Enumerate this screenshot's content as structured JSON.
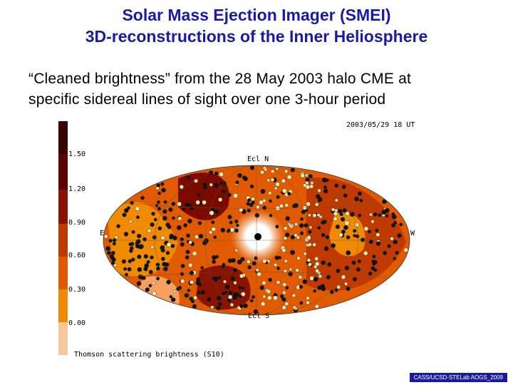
{
  "title": {
    "line1": "Solar Mass Ejection Imager (SMEI)",
    "line2": "3D-reconstructions of the Inner Heliosphere"
  },
  "subtitle": {
    "line1": "“Cleaned brightness” from the 28 May 2003 halo CME at",
    "line2": "specific sidereal lines of sight over one 3-hour period"
  },
  "figure": {
    "timestamp": "2003/05/29 18 UT",
    "label_north": "Ecl N",
    "label_south": "Ecl S",
    "label_east": "E",
    "label_west": "W",
    "colorbar_ticks": [
      "1.50",
      "1.20",
      "0.90",
      "0.60",
      "0.30",
      "0.00"
    ],
    "colorbar_caption": "Thomson scattering brightness (S10)",
    "colors": {
      "darkest": "#3a0000",
      "dark": "#7a0a00",
      "mid": "#b83000",
      "orange": "#e25a00",
      "bright": "#f08a00",
      "pale": "#f8c89a",
      "point_dark": "#111111",
      "point_light": "#f3e6b0"
    }
  },
  "footer": "CASS/UCSD-STELab AOGS_2009"
}
